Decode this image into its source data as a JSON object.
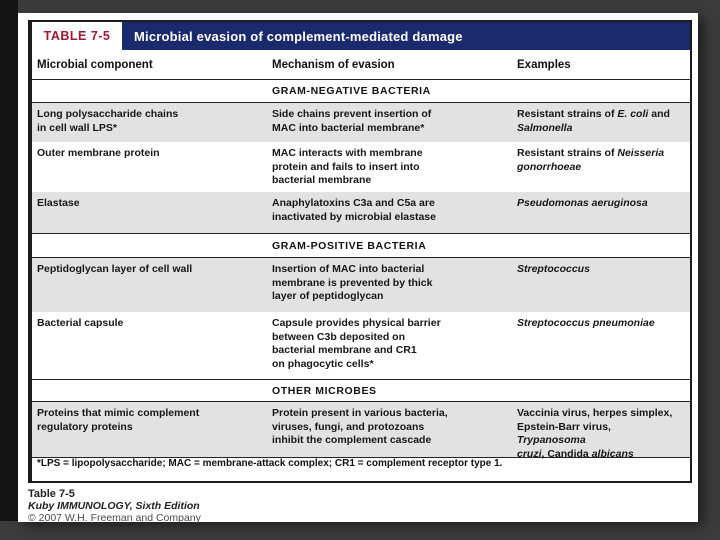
{
  "table": {
    "label": "TABLE 7-5",
    "title": "Microbial evasion of complement-mediated damage",
    "columns": [
      "Microbial component",
      "Mechanism of evasion",
      "Examples"
    ],
    "sections": [
      {
        "heading": "GRAM-NEGATIVE BACTERIA",
        "rows": [
          {
            "shaded": true,
            "cells": [
              [
                {
                  "t": "Long polysaccharide chains\nin cell wall LPS*"
                }
              ],
              [
                {
                  "t": "Side chains prevent insertion of\nMAC into bacterial membrane*"
                }
              ],
              [
                {
                  "t": "Resistant strains of "
                },
                {
                  "t": "E. coli",
                  "i": true
                },
                {
                  "t": " and\n"
                },
                {
                  "t": "Salmonella",
                  "i": true
                }
              ]
            ]
          },
          {
            "shaded": false,
            "cells": [
              [
                {
                  "t": "Outer membrane protein"
                }
              ],
              [
                {
                  "t": "MAC interacts with membrane\nprotein and fails to insert into\nbacterial membrane"
                }
              ],
              [
                {
                  "t": "Resistant strains of "
                },
                {
                  "t": "Neisseria\ngonorrhoeae",
                  "i": true
                }
              ]
            ]
          },
          {
            "shaded": true,
            "cells": [
              [
                {
                  "t": "Elastase"
                }
              ],
              [
                {
                  "t": "Anaphylatoxins C3a and C5a are\ninactivated by microbial elastase"
                }
              ],
              [
                {
                  "t": "Pseudomonas aeruginosa",
                  "i": true
                }
              ]
            ]
          }
        ]
      },
      {
        "heading": "GRAM-POSITIVE BACTERIA",
        "rows": [
          {
            "shaded": true,
            "cells": [
              [
                {
                  "t": "Peptidoglycan layer of cell wall"
                }
              ],
              [
                {
                  "t": "Insertion of MAC into bacterial\nmembrane is prevented by thick\nlayer of peptidoglycan"
                }
              ],
              [
                {
                  "t": "Streptococcus",
                  "i": true
                }
              ]
            ]
          },
          {
            "shaded": false,
            "cells": [
              [
                {
                  "t": "Bacterial capsule"
                }
              ],
              [
                {
                  "t": "Capsule provides physical barrier\nbetween C3b deposited on\nbacterial membrane and CR1\non phagocytic cells*"
                }
              ],
              [
                {
                  "t": "Streptococcus pneumoniae",
                  "i": true
                }
              ]
            ]
          }
        ]
      },
      {
        "heading": "OTHER MICROBES",
        "rows": [
          {
            "shaded": true,
            "cells": [
              [
                {
                  "t": "Proteins that mimic complement\nregulatory proteins"
                }
              ],
              [
                {
                  "t": "Protein present in various bacteria,\nviruses, fungi, and protozoans\ninhibit the complement cascade"
                }
              ],
              [
                {
                  "t": "Vaccinia virus, herpes simplex,\nEpstein-Barr virus, "
                },
                {
                  "t": "Trypanosoma\ncruzi",
                  "i": true
                },
                {
                  "t": ", Candida "
                },
                {
                  "t": "albicans",
                  "i": true
                }
              ]
            ]
          }
        ]
      }
    ],
    "footnote": "*LPS = lipopolysaccharide; MAC = membrane-attack complex; CR1 = complement receptor type 1."
  },
  "caption": {
    "table_ref": "Table 7-5",
    "book": "Kuby IMMUNOLOGY, Sixth Edition",
    "copyright": "© 2007 W.H. Freeman and Company"
  },
  "colors": {
    "banner_navy": "#1a2a6c",
    "label_red": "#9e1b32",
    "row_shade": "#e2e2e2",
    "slide_bg": "#3b3b3b"
  }
}
